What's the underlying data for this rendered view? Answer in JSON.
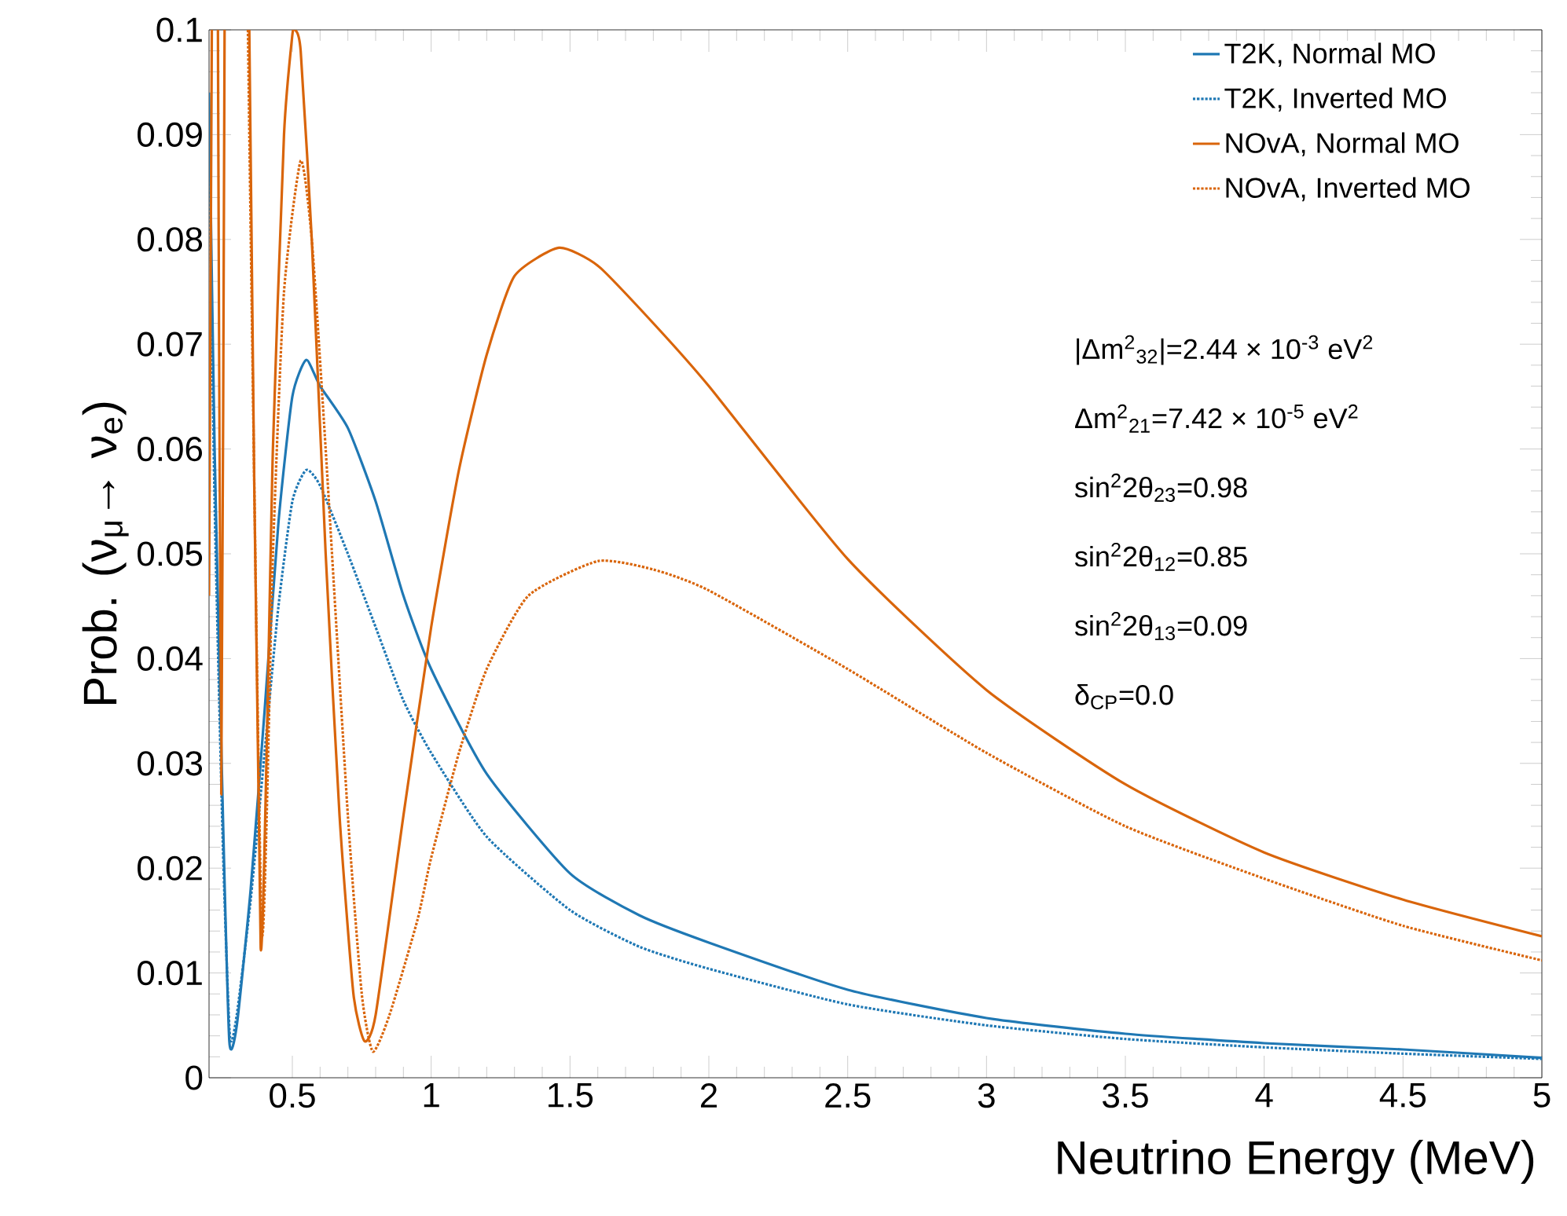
{
  "chart_data": {
    "type": "line",
    "xlabel": "Neutrino Energy (MeV)",
    "ylabel": "Prob. (ν$_{μ}$→ ν$_{e}$)",
    "xlim": [
      0.2,
      5
    ],
    "ylim": [
      0,
      0.1
    ],
    "xticks": [
      0.5,
      1,
      1.5,
      2,
      2.5,
      3,
      3.5,
      4,
      4.5,
      5
    ],
    "yticks": [
      0,
      0.01,
      0.02,
      0.03,
      0.04,
      0.05,
      0.06,
      0.07,
      0.08,
      0.09,
      0.1
    ],
    "grid": false,
    "legend": "top right",
    "annotations": [
      "|Δm$^{2}$$_{32}$|=2.44 × 10$^{-3}$ eV$^{2}$",
      "Δm$^{2}$$_{21}$=7.42 × 10$^{-5}$ eV$^{2}$",
      "sin$^{2}$2θ$_{23}$=0.98",
      "sin$^{2}$2θ$_{12}$=0.85",
      "sin$^{2}$2θ$_{13}$=0.09",
      "δ$_{CP}$=0.0"
    ],
    "series": [
      {
        "name": "T2K, Normal MO",
        "color": "#1f78b4",
        "line_style": "solid",
        "x": [
          0.2,
          0.22,
          0.25,
          0.273,
          0.3,
          0.35,
          0.4,
          0.45,
          0.5,
          0.55,
          0.6,
          0.7,
          0.8,
          0.9,
          1.0,
          1.2,
          1.5,
          1.75,
          2,
          2.5,
          3,
          3.5,
          4,
          4.5,
          5
        ],
        "values": [
          0.094,
          0.06,
          0.025,
          0.0035,
          0.005,
          0.018,
          0.035,
          0.053,
          0.065,
          0.0685,
          0.066,
          0.062,
          0.055,
          0.046,
          0.039,
          0.029,
          0.0195,
          0.0155,
          0.0129,
          0.0084,
          0.0057,
          0.0042,
          0.0033,
          0.0027,
          0.0019
        ]
      },
      {
        "name": "T2K, Inverted MO",
        "color": "#1f78b4",
        "line_style": "dotted",
        "x": [
          0.2,
          0.22,
          0.25,
          0.275,
          0.3,
          0.35,
          0.4,
          0.45,
          0.5,
          0.55,
          0.6,
          0.7,
          0.8,
          0.9,
          1.0,
          1.2,
          1.5,
          1.75,
          2,
          2.5,
          3,
          3.5,
          4,
          4.5,
          5
        ],
        "values": [
          0.09,
          0.055,
          0.022,
          0.004,
          0.006,
          0.017,
          0.031,
          0.045,
          0.055,
          0.058,
          0.0565,
          0.05,
          0.043,
          0.036,
          0.031,
          0.023,
          0.016,
          0.0125,
          0.0104,
          0.007,
          0.005,
          0.0037,
          0.0029,
          0.0023,
          0.0018
        ]
      },
      {
        "name": "NOvA, Normal MO",
        "color": "#d9650b",
        "line_style": "solid",
        "x": [
          0.2,
          0.21,
          0.22,
          0.232,
          0.244,
          0.256,
          0.3,
          0.345,
          0.386,
          0.43,
          0.47,
          0.5,
          0.51,
          0.53,
          0.57,
          0.62,
          0.67,
          0.72,
          0.76,
          0.8,
          0.9,
          1.0,
          1.1,
          1.2,
          1.3,
          1.46,
          1.6,
          1.8,
          2,
          2.5,
          3,
          3.5,
          4,
          4.5,
          5
        ],
        "values": [
          0.046,
          0.1,
          null,
          0.1,
          0.027,
          0.1,
          null,
          0.1,
          0.0124,
          0.06,
          0.09,
          0.0995,
          0.1,
          0.098,
          0.08,
          0.05,
          0.025,
          0.008,
          0.0035,
          0.006,
          0.025,
          0.043,
          0.058,
          0.069,
          0.0765,
          0.0792,
          0.0775,
          0.072,
          0.066,
          0.0495,
          0.037,
          0.028,
          0.0215,
          0.017,
          0.0135
        ]
      },
      {
        "name": "NOvA, Inverted MO",
        "color": "#d9650b",
        "line_style": "dotted",
        "x": [
          0.34,
          0.39,
          0.43,
          0.47,
          0.53,
          0.57,
          0.62,
          0.7,
          0.75,
          0.79,
          0.85,
          0.95,
          1.0,
          1.1,
          1.2,
          1.35,
          1.6,
          1.8,
          2,
          2.5,
          3,
          3.5,
          4,
          4.5,
          5
        ],
        "values": [
          0.1,
          0.014,
          0.05,
          0.075,
          0.0875,
          0.08,
          0.06,
          0.025,
          0.008,
          0.0025,
          0.006,
          0.015,
          0.021,
          0.031,
          0.039,
          0.046,
          0.0493,
          0.0485,
          0.0465,
          0.039,
          0.031,
          0.024,
          0.019,
          0.0145,
          0.0112
        ]
      }
    ]
  }
}
